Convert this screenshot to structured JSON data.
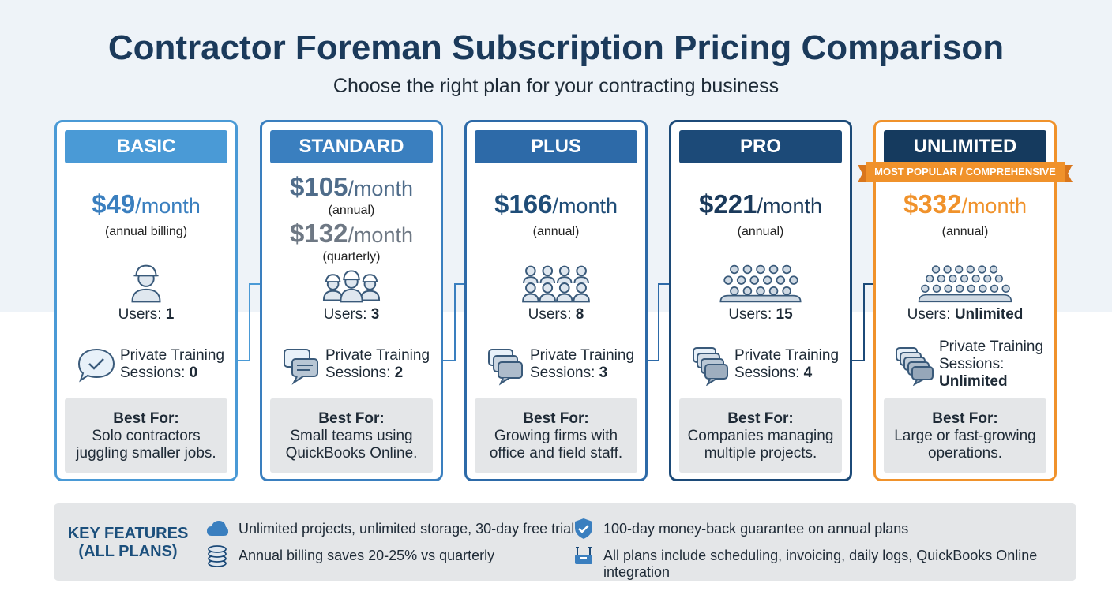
{
  "title": "Contractor Foreman Subscription Pricing Comparison",
  "subtitle": "Choose the right plan for your contracting business",
  "colors": {
    "basic": "#4a9ad6",
    "standard": "#3a7fbf",
    "plus": "#2d6aa8",
    "pro": "#1c4a78",
    "unlimited_border": "#f0922b",
    "unlimited_header": "#153a5e",
    "accent_orange": "#f0922b"
  },
  "plans": [
    {
      "name": "BASIC",
      "price": "$49",
      "per": "/month",
      "billing": "(annual billing)",
      "users_prefix": "Users: ",
      "users": "1",
      "training_line1": "Private Training",
      "training_line2": "Sessions: ",
      "training_value": "0",
      "best_title": "Best For:",
      "best_line1": "Solo contractors",
      "best_line2": "juggling smaller jobs.",
      "user_icon": "hard-hat-worker-icon",
      "training_icon": "chat-check-icon"
    },
    {
      "name": "STANDARD",
      "price": "$105",
      "per": "/month",
      "billing": "(annual)",
      "price2": "$132",
      "per2": "/month",
      "billing2": "(quarterly)",
      "users_prefix": "Users: ",
      "users": "3",
      "training_line1": "Private Training",
      "training_line2": "Sessions: ",
      "training_value": "2",
      "best_title": "Best For:",
      "best_line1": "Small teams using",
      "best_line2": "QuickBooks Online.",
      "user_icon": "three-workers-icon",
      "training_icon": "chat-bubbles-icon"
    },
    {
      "name": "PLUS",
      "price": "$166",
      "per": "/month",
      "billing": "(annual)",
      "users_prefix": "Users: ",
      "users": "8",
      "training_line1": "Private Training",
      "training_line2": "Sessions: ",
      "training_value": "3",
      "best_title": "Best For:",
      "best_line1": "Growing firms with",
      "best_line2": "office and field staff.",
      "user_icon": "eight-users-icon",
      "training_icon": "chat-bubbles-icon"
    },
    {
      "name": "PRO",
      "price": "$221",
      "per": "/month",
      "billing": "(annual)",
      "users_prefix": "Users: ",
      "users": "15",
      "training_line1": "Private Training",
      "training_line2": "Sessions: ",
      "training_value": "4",
      "best_title": "Best For:",
      "best_line1": "Companies managing",
      "best_line2": "multiple projects.",
      "user_icon": "fifteen-users-icon",
      "training_icon": "chat-bubbles-icon"
    },
    {
      "name": "UNLIMITED",
      "ribbon": "MOST POPULAR / COMPREHENSIVE",
      "price": "$332",
      "per": "/month",
      "billing": "(annual)",
      "users_prefix": "Users: ",
      "users": "Unlimited",
      "training_line1": "Private Training",
      "training_line2": "Sessions:",
      "training_value": "Unlimited",
      "best_title": "Best For:",
      "best_line1": "Large or fast-growing",
      "best_line2": "operations.",
      "user_icon": "crowd-users-icon",
      "training_icon": "chat-bubbles-stack-icon"
    }
  ],
  "features": {
    "title_line1": "KEY FEATURES",
    "title_line2": "(ALL PLANS)",
    "items": [
      {
        "icon": "cloud-icon",
        "text": "Unlimited projects, unlimited storage, 30-day free trial"
      },
      {
        "icon": "coin-stack-icon",
        "text": "Annual billing saves 20-25% vs quarterly"
      },
      {
        "icon": "shield-check-icon",
        "text": "100-day money-back guarantee on annual plans"
      },
      {
        "icon": "tools-icon",
        "text": "All plans include scheduling, invoicing, daily logs, QuickBooks Online integration"
      }
    ]
  }
}
